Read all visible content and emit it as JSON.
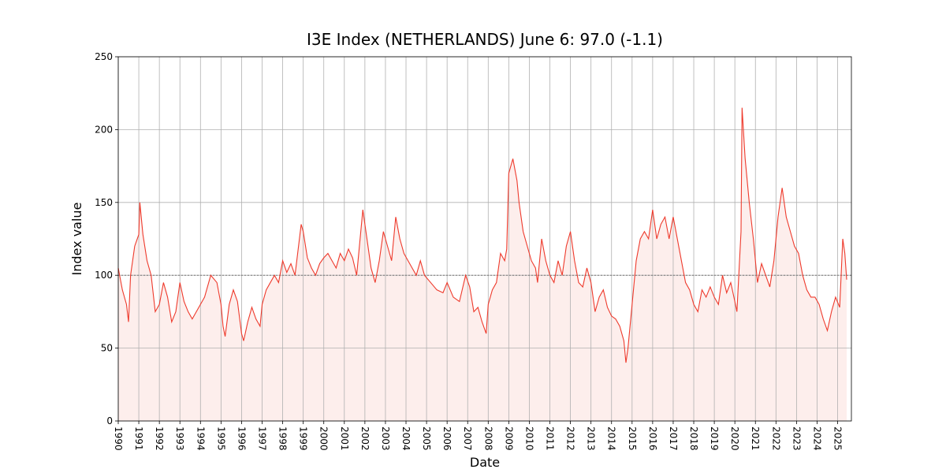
{
  "chart_data": {
    "type": "line",
    "title": "I3E Index (NETHERLANDS) June 6: 97.0 (-1.1)",
    "xlabel": "Date",
    "ylabel": "Index value",
    "color": "#ee3a2c",
    "fill_color": "#fdeeec",
    "grid": true,
    "reference_line": 100,
    "xlim": [
      1990,
      2025.67
    ],
    "ylim": [
      0,
      250
    ],
    "yticks": [
      0,
      50,
      100,
      150,
      200,
      250
    ],
    "xticks": [
      1990,
      1991,
      1992,
      1993,
      1994,
      1995,
      1996,
      1997,
      1998,
      1999,
      2000,
      2001,
      2002,
      2003,
      2004,
      2005,
      2006,
      2007,
      2008,
      2009,
      2010,
      2011,
      2012,
      2013,
      2014,
      2015,
      2016,
      2017,
      2018,
      2019,
      2020,
      2021,
      2022,
      2023,
      2024,
      2025
    ],
    "x": [
      1990.0,
      1990.2,
      1990.4,
      1990.5,
      1990.6,
      1990.8,
      1991.0,
      1991.05,
      1991.2,
      1991.4,
      1991.6,
      1991.8,
      1992.0,
      1992.2,
      1992.4,
      1992.6,
      1992.8,
      1993.0,
      1993.2,
      1993.4,
      1993.6,
      1993.8,
      1994.0,
      1994.2,
      1994.5,
      1994.8,
      1995.0,
      1995.1,
      1995.2,
      1995.4,
      1995.6,
      1995.8,
      1996.0,
      1996.1,
      1996.3,
      1996.5,
      1996.7,
      1996.9,
      1997.0,
      1997.2,
      1997.4,
      1997.6,
      1997.8,
      1998.0,
      1998.2,
      1998.4,
      1998.6,
      1998.9,
      1999.0,
      1999.2,
      1999.4,
      1999.6,
      1999.8,
      2000.0,
      2000.2,
      2000.4,
      2000.6,
      2000.8,
      2001.0,
      2001.2,
      2001.4,
      2001.6,
      2001.9,
      2002.1,
      2002.3,
      2002.5,
      2002.7,
      2002.9,
      2003.1,
      2003.3,
      2003.5,
      2003.7,
      2003.9,
      2004.1,
      2004.3,
      2004.5,
      2004.7,
      2004.9,
      2005.2,
      2005.5,
      2005.8,
      2006.0,
      2006.3,
      2006.6,
      2006.9,
      2007.1,
      2007.3,
      2007.5,
      2007.7,
      2007.9,
      2008.0,
      2008.2,
      2008.4,
      2008.6,
      2008.8,
      2008.9,
      2009.0,
      2009.2,
      2009.4,
      2009.5,
      2009.7,
      2009.9,
      2010.1,
      2010.3,
      2010.4,
      2010.6,
      2010.8,
      2011.0,
      2011.2,
      2011.4,
      2011.6,
      2011.8,
      2012.0,
      2012.2,
      2012.4,
      2012.6,
      2012.8,
      2013.0,
      2013.2,
      2013.4,
      2013.6,
      2013.8,
      2014.0,
      2014.2,
      2014.4,
      2014.6,
      2014.7,
      2014.8,
      2015.0,
      2015.2,
      2015.4,
      2015.6,
      2015.8,
      2016.0,
      2016.2,
      2016.4,
      2016.6,
      2016.8,
      2017.0,
      2017.2,
      2017.4,
      2017.6,
      2017.8,
      2018.0,
      2018.2,
      2018.4,
      2018.6,
      2018.8,
      2019.0,
      2019.2,
      2019.4,
      2019.6,
      2019.8,
      2020.0,
      2020.1,
      2020.3,
      2020.35,
      2020.5,
      2020.7,
      2020.9,
      2021.1,
      2021.3,
      2021.5,
      2021.7,
      2021.9,
      2022.1,
      2022.3,
      2022.5,
      2022.7,
      2022.9,
      2023.1,
      2023.3,
      2023.5,
      2023.7,
      2023.9,
      2024.1,
      2024.3,
      2024.5,
      2024.7,
      2024.9,
      2025.1,
      2025.25,
      2025.35,
      2025.44
    ],
    "values": [
      105,
      90,
      80,
      68,
      100,
      120,
      128,
      150,
      128,
      110,
      100,
      75,
      80,
      95,
      85,
      68,
      75,
      95,
      82,
      75,
      70,
      75,
      80,
      85,
      100,
      95,
      80,
      65,
      58,
      80,
      90,
      82,
      60,
      55,
      68,
      78,
      70,
      65,
      80,
      90,
      95,
      100,
      95,
      110,
      102,
      108,
      100,
      135,
      130,
      112,
      105,
      100,
      108,
      112,
      115,
      110,
      105,
      115,
      110,
      118,
      112,
      100,
      145,
      125,
      105,
      95,
      110,
      130,
      120,
      110,
      140,
      125,
      115,
      110,
      105,
      100,
      110,
      100,
      95,
      90,
      88,
      95,
      85,
      82,
      100,
      92,
      75,
      78,
      68,
      60,
      80,
      90,
      95,
      115,
      110,
      118,
      170,
      180,
      165,
      150,
      130,
      120,
      110,
      105,
      95,
      125,
      110,
      100,
      95,
      110,
      100,
      120,
      130,
      110,
      95,
      92,
      105,
      95,
      75,
      85,
      90,
      78,
      72,
      70,
      65,
      55,
      40,
      50,
      80,
      110,
      125,
      130,
      125,
      145,
      125,
      135,
      140,
      125,
      140,
      125,
      110,
      95,
      90,
      80,
      75,
      90,
      85,
      92,
      85,
      80,
      100,
      88,
      95,
      82,
      75,
      130,
      215,
      180,
      150,
      125,
      95,
      108,
      100,
      92,
      110,
      140,
      160,
      140,
      130,
      120,
      115,
      100,
      90,
      85,
      85,
      80,
      70,
      62,
      75,
      85,
      78,
      125,
      115,
      97
    ]
  }
}
